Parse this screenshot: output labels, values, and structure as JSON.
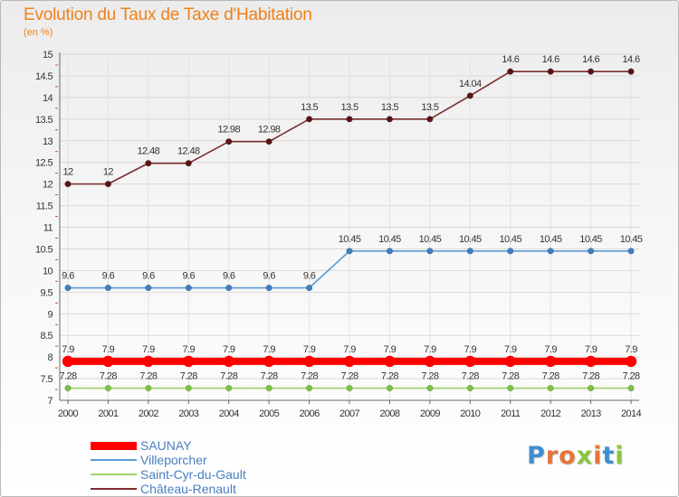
{
  "title": "Evolution du Taux de Taxe d'Habitation",
  "unit_label": "(en %)",
  "logo": {
    "text": "Proxiti",
    "colors": [
      "#3e8fd0",
      "#e8743b",
      "#e8743b",
      "#8bc53f",
      "#e8743b",
      "#3e8fd0",
      "#8bc53f"
    ]
  },
  "chart_data": {
    "type": "line",
    "title": "Evolution du Taux de Taxe d'Habitation",
    "ylabel": "(en %)",
    "xlabel": "",
    "x": [
      "2000",
      "2001",
      "2002",
      "2003",
      "2004",
      "2005",
      "2006",
      "2007",
      "2008",
      "2009",
      "2010",
      "2011",
      "2012",
      "2013",
      "2014"
    ],
    "ylim": [
      7,
      15
    ],
    "yticks": [
      "7",
      "7.5",
      "8",
      "8.5",
      "9",
      "9.5",
      "10",
      "10.5",
      "11",
      "11.5",
      "12",
      "12.5",
      "13",
      "13.5",
      "14",
      "14.5",
      "15"
    ],
    "grid": true,
    "legend_position": "bottom-left",
    "series": [
      {
        "name": "Château-Renault",
        "color": "#7b2e2e",
        "marker": "#5a1414",
        "values": [
          12,
          12,
          12.48,
          12.48,
          12.98,
          12.98,
          13.5,
          13.5,
          13.5,
          13.5,
          14.04,
          14.6,
          14.6,
          14.6,
          14.6
        ],
        "labels": [
          "12",
          "12",
          "12.48",
          "12.48",
          "12.98",
          "12.98",
          "13.5",
          "13.5",
          "13.5",
          "13.5",
          "14.04",
          "14.6",
          "14.6",
          "14.6",
          "14.6"
        ]
      },
      {
        "name": "Villeporcher",
        "color": "#5b9bd5",
        "marker": "#3d7fc0",
        "values": [
          9.6,
          9.6,
          9.6,
          9.6,
          9.6,
          9.6,
          9.6,
          10.45,
          10.45,
          10.45,
          10.45,
          10.45,
          10.45,
          10.45,
          10.45
        ],
        "labels": [
          "9.6",
          "9.6",
          "9.6",
          "9.6",
          "9.6",
          "9.6",
          "9.6",
          "10.45",
          "10.45",
          "10.45",
          "10.45",
          "10.45",
          "10.45",
          "10.45",
          "10.45"
        ]
      },
      {
        "name": "SAUNAY",
        "color": "#ff0000",
        "marker": "#ff0000",
        "values": [
          7.9,
          7.9,
          7.9,
          7.9,
          7.9,
          7.9,
          7.9,
          7.9,
          7.9,
          7.9,
          7.9,
          7.9,
          7.9,
          7.9,
          7.9
        ],
        "labels": [
          "7.9",
          "7.9",
          "7.9",
          "7.9",
          "7.9",
          "7.9",
          "7.9",
          "7.9",
          "7.9",
          "7.9",
          "7.9",
          "7.9",
          "7.9",
          "7.9",
          "7.9"
        ]
      },
      {
        "name": "Saint-Cyr-du-Gault",
        "color": "#9ed36a",
        "marker": "#7cc242",
        "values": [
          7.28,
          7.28,
          7.28,
          7.28,
          7.28,
          7.28,
          7.28,
          7.28,
          7.28,
          7.28,
          7.28,
          7.28,
          7.28,
          7.28,
          7.28
        ],
        "labels": [
          "7.28",
          "7.28",
          "7.28",
          "7.28",
          "7.28",
          "7.28",
          "7.28",
          "7.28",
          "7.28",
          "7.28",
          "7.28",
          "7.28",
          "7.28",
          "7.28",
          "7.28"
        ]
      }
    ]
  },
  "legend": [
    {
      "name": "SAUNAY",
      "color": "#ff0000"
    },
    {
      "name": "Villeporcher",
      "color": "#5b9bd5"
    },
    {
      "name": "Saint-Cyr-du-Gault",
      "color": "#9ed36a"
    },
    {
      "name": "Château-Renault",
      "color": "#7b2e2e"
    }
  ]
}
